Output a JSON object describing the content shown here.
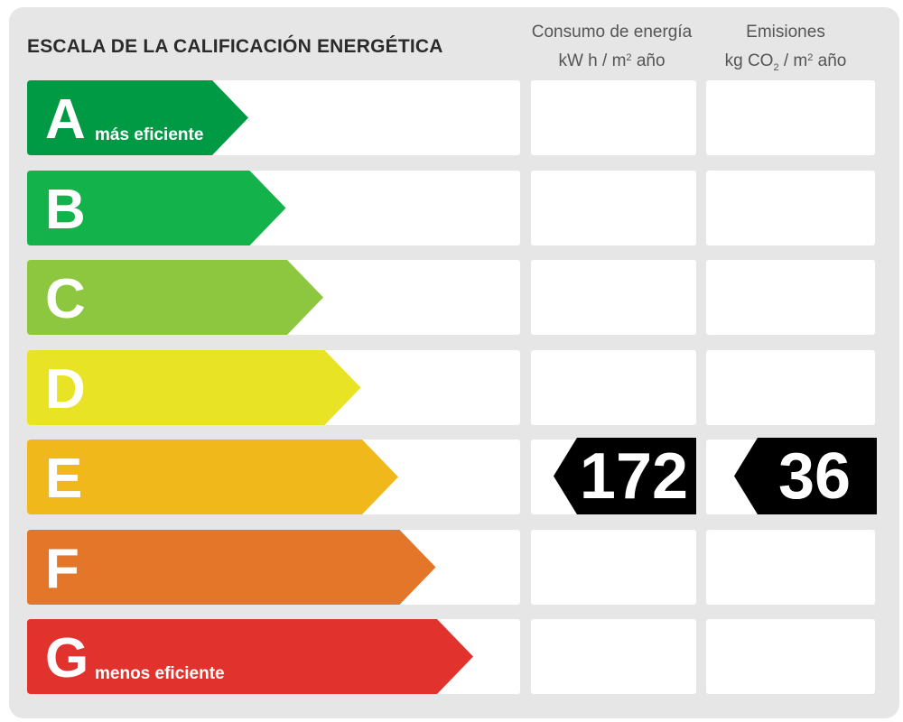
{
  "title": "ESCALA DE LA CALIFICACIÓN ENERGÉTICA",
  "columns": {
    "consumo": {
      "line1": "Consumo de energía",
      "unit_pre": "kW h  / m",
      "unit_sup": "2",
      "unit_post": " año"
    },
    "emisiones": {
      "line1": "Emisiones",
      "unit_pre": "kg CO",
      "unit_sub": "2",
      "unit_mid": "  / m",
      "unit_sup": "2",
      "unit_post": " año"
    }
  },
  "ratings": [
    {
      "letter": "A",
      "label": "más eficiente",
      "color": "#009a44"
    },
    {
      "letter": "B",
      "label": "",
      "color": "#14b24b"
    },
    {
      "letter": "C",
      "label": "",
      "color": "#8dc63f"
    },
    {
      "letter": "D",
      "label": "",
      "color": "#e8e324"
    },
    {
      "letter": "E",
      "label": "",
      "color": "#f0b81b"
    },
    {
      "letter": "F",
      "label": "",
      "color": "#e4762a"
    },
    {
      "letter": "G",
      "label": "menos eficiente",
      "color": "#e2322d"
    }
  ],
  "current": {
    "rating": "E",
    "consumo": "172",
    "emisiones": "36",
    "tag_color": "#000000"
  }
}
